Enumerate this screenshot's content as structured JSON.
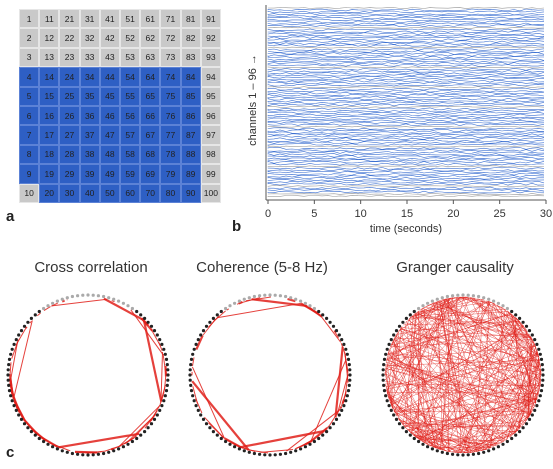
{
  "panel_a": {
    "letter": "a",
    "grid": [
      [
        1,
        11,
        21,
        31,
        41,
        51,
        61,
        71,
        81,
        91
      ],
      [
        2,
        12,
        22,
        32,
        42,
        52,
        62,
        72,
        82,
        92
      ],
      [
        3,
        13,
        23,
        33,
        43,
        53,
        63,
        73,
        83,
        93
      ],
      [
        4,
        14,
        24,
        34,
        44,
        54,
        64,
        74,
        84,
        94
      ],
      [
        5,
        15,
        25,
        35,
        45,
        55,
        65,
        75,
        85,
        95
      ],
      [
        6,
        16,
        26,
        36,
        46,
        56,
        66,
        76,
        86,
        96
      ],
      [
        7,
        17,
        27,
        37,
        47,
        57,
        67,
        77,
        87,
        97
      ],
      [
        8,
        18,
        28,
        38,
        48,
        58,
        68,
        78,
        88,
        98
      ],
      [
        9,
        19,
        29,
        39,
        49,
        59,
        69,
        79,
        89,
        99
      ],
      [
        10,
        20,
        30,
        40,
        50,
        60,
        70,
        80,
        90,
        100
      ]
    ],
    "highlight_color": "#2e5fc4",
    "base_color": "#c9c9c9"
  },
  "panel_b": {
    "letter": "b",
    "ylabel": "channels 1 – 96 →",
    "xlabel": "time (seconds)",
    "chart_data": {
      "type": "line",
      "title": "",
      "xlabel": "time (seconds)",
      "ylabel": "channels 1 – 96 →",
      "xlim": [
        0,
        30
      ],
      "xticks": [
        "0",
        "5",
        "10",
        "15",
        "20",
        "25",
        "30"
      ],
      "n_channels": 96,
      "series_colors": [
        "#3b6fd1",
        "#9a9a9a"
      ]
    }
  },
  "panel_c": {
    "letter": "c",
    "plots": [
      {
        "title": "Cross correlation",
        "density": 0.18
      },
      {
        "title": "Coherence (5-8 Hz)",
        "density": 0.16
      },
      {
        "title": "Granger causality",
        "density": 0.9
      }
    ],
    "edge_color": "#e0201a"
  }
}
